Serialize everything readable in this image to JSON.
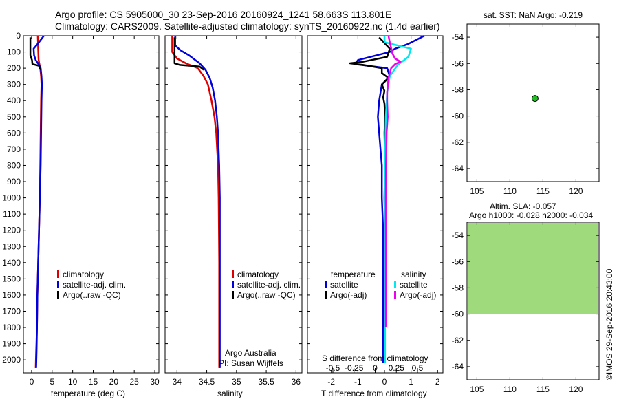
{
  "title": {
    "line1": "Argo profile: CS 5905000_30 23-Sep-2016 20160924_1241 58.663S 113.801E",
    "line2": "Climatology: CARS2009. Satellite-adjusted climatology: synTS_20160922.nc (1.4d earlier)"
  },
  "colors": {
    "climatology": "#dd0000",
    "satellite": "#0000dd",
    "argo": "#000000",
    "sal_satellite": "#00e8f0",
    "sal_argo": "#ee00ee",
    "location_dot": "#22bb22"
  },
  "credit": "©IMOS 29-Sep-2016 20:43:00",
  "chart_data": [
    {
      "id": "temperature",
      "type": "line",
      "xlabel": "temperature (deg C)",
      "ylabel": "",
      "xlim": [
        -2,
        31
      ],
      "ylim": [
        2080,
        0
      ],
      "xticks": [
        0,
        5,
        10,
        15,
        20,
        25,
        30
      ],
      "yticks": [
        0,
        100,
        200,
        300,
        400,
        500,
        600,
        700,
        800,
        900,
        1000,
        1100,
        1200,
        1300,
        1400,
        1500,
        1600,
        1700,
        1800,
        1900,
        2000
      ],
      "legend": [
        "climatology",
        "satellite-adj. clim.",
        "Argo(..raw -QC)"
      ],
      "series": [
        {
          "name": "climatology",
          "color": "climatology",
          "points": [
            [
              1.5,
              0
            ],
            [
              1.6,
              80
            ],
            [
              1.7,
              150
            ],
            [
              2.1,
              200
            ],
            [
              2.3,
              250
            ],
            [
              2.4,
              300
            ],
            [
              2.3,
              400
            ],
            [
              2.2,
              600
            ],
            [
              2.1,
              800
            ],
            [
              2.0,
              1000
            ],
            [
              1.8,
              1200
            ],
            [
              1.6,
              1400
            ],
            [
              1.4,
              1600
            ],
            [
              1.3,
              1800
            ],
            [
              1.1,
              1950
            ],
            [
              1.0,
              2050
            ]
          ]
        },
        {
          "name": "satellite-adj. clim.",
          "color": "satellite",
          "points": [
            [
              3.0,
              0
            ],
            [
              1.8,
              40
            ],
            [
              0.5,
              80
            ],
            [
              0.6,
              120
            ],
            [
              1.0,
              150
            ],
            [
              1.8,
              180
            ],
            [
              2.2,
              200
            ],
            [
              2.4,
              250
            ],
            [
              2.5,
              300
            ],
            [
              2.4,
              400
            ],
            [
              2.3,
              600
            ],
            [
              2.2,
              800
            ],
            [
              2.0,
              1000
            ],
            [
              1.8,
              1200
            ],
            [
              1.6,
              1400
            ],
            [
              1.4,
              1600
            ],
            [
              1.3,
              1800
            ],
            [
              1.2,
              1950
            ],
            [
              1.1,
              2050
            ]
          ]
        },
        {
          "name": "Argo(..raw -QC)",
          "color": "argo",
          "points": [
            [
              -0.3,
              10
            ],
            [
              -0.3,
              120
            ],
            [
              0.1,
              150
            ],
            [
              0.2,
              175
            ],
            [
              1.8,
              185
            ],
            [
              2.2,
              210
            ]
          ]
        }
      ]
    },
    {
      "id": "salinity",
      "type": "line",
      "xlabel": "salinity",
      "ylabel": "",
      "xlim": [
        33.8,
        36.1
      ],
      "ylim": [
        2080,
        0
      ],
      "xticks": [
        34,
        34.5,
        35,
        35.5,
        36
      ],
      "xticklabels": [
        "34",
        "34.5",
        "35",
        "35.5",
        "36"
      ],
      "legend": [
        "climatology",
        "satellite-adj. clim.",
        "Argo(..raw -QC)"
      ],
      "annotation": [
        "Argo Australia",
        "PI: Susan Wijffels"
      ],
      "series": [
        {
          "name": "climatology",
          "color": "climatology",
          "points": [
            [
              33.92,
              0
            ],
            [
              33.92,
              100
            ],
            [
              34.0,
              140
            ],
            [
              34.15,
              170
            ],
            [
              34.35,
              200
            ],
            [
              34.45,
              250
            ],
            [
              34.52,
              300
            ],
            [
              34.58,
              400
            ],
            [
              34.63,
              500
            ],
            [
              34.66,
              600
            ],
            [
              34.69,
              800
            ],
            [
              34.7,
              1000
            ],
            [
              34.71,
              1400
            ],
            [
              34.71,
              1800
            ],
            [
              34.71,
              2050
            ]
          ]
        },
        {
          "name": "satellite-adj. clim.",
          "color": "satellite",
          "points": [
            [
              33.97,
              0
            ],
            [
              33.97,
              60
            ],
            [
              34.06,
              90
            ],
            [
              34.2,
              120
            ],
            [
              34.38,
              170
            ],
            [
              34.48,
              210
            ],
            [
              34.55,
              260
            ],
            [
              34.6,
              320
            ],
            [
              34.64,
              400
            ],
            [
              34.67,
              500
            ],
            [
              34.69,
              600
            ],
            [
              34.71,
              800
            ],
            [
              34.72,
              1000
            ],
            [
              34.72,
              1400
            ],
            [
              34.72,
              1800
            ],
            [
              34.72,
              2050
            ]
          ]
        },
        {
          "name": "Argo(..raw -QC)",
          "color": "argo",
          "points": [
            [
              33.96,
              10
            ],
            [
              33.96,
              170
            ],
            [
              34.05,
              180
            ],
            [
              34.38,
              190
            ],
            [
              34.45,
              210
            ]
          ]
        }
      ]
    },
    {
      "id": "difference",
      "type": "line",
      "xlabel": "T difference from climatology",
      "toplabel": "S difference from climatology",
      "ylabel": "",
      "xlim": [
        -2.9,
        2.2
      ],
      "ylim": [
        2080,
        0
      ],
      "xticks": [
        -2,
        -1,
        0,
        1,
        2
      ],
      "top_ticks": [
        -0.5,
        -0.25,
        0,
        0.25,
        0.5
      ],
      "top_ticklabels": [
        "-0.5",
        "-0.25",
        "0",
        "0.25",
        "0.5"
      ],
      "legend": [
        {
          "group": "temperature",
          "items": [
            "satellite",
            "Argo(-adj)"
          ]
        },
        {
          "group": "salinity",
          "items": [
            "satellite",
            "Argo(-adj)"
          ]
        }
      ],
      "series": [
        {
          "name": "temperature satellite",
          "color": "satellite",
          "points": [
            [
              1.5,
              0
            ],
            [
              0.9,
              50
            ],
            [
              0.4,
              80
            ],
            [
              0.2,
              100
            ],
            [
              -1.0,
              150
            ],
            [
              -1.1,
              175
            ],
            [
              0.1,
              200
            ],
            [
              0.2,
              250
            ],
            [
              -0.1,
              300
            ],
            [
              -0.2,
              400
            ],
            [
              -0.25,
              500
            ],
            [
              -0.2,
              600
            ],
            [
              -0.15,
              700
            ],
            [
              -0.1,
              800
            ],
            [
              -0.1,
              1000
            ],
            [
              -0.05,
              1200
            ],
            [
              -0.05,
              1500
            ],
            [
              -0.05,
              1800
            ],
            [
              -0.05,
              2020
            ]
          ]
        },
        {
          "name": "temperature Argo(-adj)",
          "color": "argo",
          "points": [
            [
              -0.2,
              10
            ],
            [
              0.2,
              80
            ],
            [
              0.1,
              130
            ],
            [
              -0.8,
              160
            ],
            [
              -1.3,
              170
            ],
            [
              -0.8,
              180
            ],
            [
              -0.1,
              200
            ],
            [
              -0.1,
              230
            ],
            [
              0.15,
              260
            ],
            [
              -0.1,
              300
            ],
            [
              0.0,
              340
            ],
            [
              -0.05,
              380
            ],
            [
              0.0,
              420
            ],
            [
              0.02,
              500
            ],
            [
              0.0,
              600
            ],
            [
              0.02,
              800
            ],
            [
              0.0,
              1000
            ],
            [
              0.02,
              1200
            ],
            [
              0.0,
              1500
            ],
            [
              0.0,
              1800
            ]
          ]
        },
        {
          "name": "salinity satellite",
          "color": "sal_satellite",
          "points": [
            [
              0.0,
              0
            ],
            [
              0.0,
              40
            ],
            [
              1.0,
              80
            ],
            [
              0.9,
              130
            ],
            [
              0.5,
              180
            ],
            [
              0.2,
              250
            ],
            [
              0.1,
              350
            ],
            [
              0.05,
              500
            ],
            [
              0.03,
              700
            ],
            [
              0.02,
              1000
            ],
            [
              0.02,
              1400
            ],
            [
              0.02,
              1800
            ],
            [
              0.02,
              2020
            ]
          ]
        },
        {
          "name": "salinity Argo(-adj)",
          "color": "sal_argo",
          "points": [
            [
              0.15,
              0
            ],
            [
              0.2,
              40
            ],
            [
              0.3,
              110
            ],
            [
              0.4,
              140
            ],
            [
              0.6,
              160
            ],
            [
              0.4,
              175
            ],
            [
              0.25,
              200
            ],
            [
              0.15,
              260
            ],
            [
              0.1,
              350
            ],
            [
              0.1,
              400
            ],
            [
              0.12,
              500
            ],
            [
              0.08,
              600
            ],
            [
              0.06,
              800
            ],
            [
              0.05,
              1000
            ],
            [
              0.05,
              1200
            ],
            [
              0.05,
              1500
            ],
            [
              0.05,
              1800
            ]
          ]
        }
      ]
    },
    {
      "id": "location",
      "type": "scatter",
      "title": "sat. SST: NaN Argo: -0.219",
      "xlabel": "",
      "ylabel": "",
      "xlim": [
        103.5,
        123.5
      ],
      "ylim": [
        -65,
        -53
      ],
      "xticks": [
        105,
        110,
        115,
        120
      ],
      "yticks": [
        -54,
        -56,
        -58,
        -60,
        -62,
        -64
      ],
      "points": [
        {
          "x": 113.801,
          "y": -58.663
        }
      ]
    },
    {
      "id": "sla",
      "type": "heatmap",
      "title_line1": "Altim. SLA: -0.057",
      "title_line2": "Argo h1000: -0.028 h2000: -0.034",
      "xlabel": "",
      "ylabel": "",
      "xlim": [
        103.5,
        123.5
      ],
      "ylim": [
        -65,
        -53
      ],
      "data_ylim": [
        -60,
        -53
      ],
      "xticks": [
        105,
        110,
        115,
        120
      ],
      "yticks": [
        -54,
        -56,
        -58,
        -60,
        -62,
        -64
      ]
    }
  ]
}
